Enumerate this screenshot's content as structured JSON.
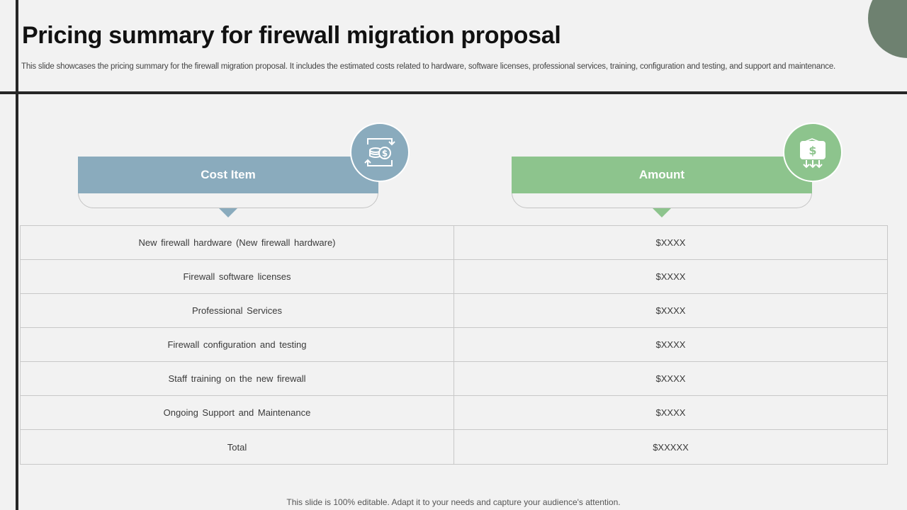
{
  "slide": {
    "title": "Pricing summary for firewall migration proposal",
    "subtitle": "This slide showcases the pricing summary for the firewall migration proposal. It includes the estimated costs related to hardware, software licenses, professional services, training, configuration and testing, and support and maintenance.",
    "footer": "This slide is 100% editable. Adapt it to your needs and capture your audience's attention."
  },
  "columns": {
    "cost_item": {
      "label": "Cost Item",
      "icon": "money-exchange-icon",
      "color": "#8aabbd"
    },
    "amount": {
      "label": "Amount",
      "icon": "wallet-dollar-icon",
      "color": "#8dc48d"
    }
  },
  "rows": [
    {
      "item": "New firewall hardware (New firewall hardware)",
      "amount": "$XXXX"
    },
    {
      "item": "Firewall software licenses",
      "amount": "$XXXX"
    },
    {
      "item": "Professional Services",
      "amount": "$XXXX"
    },
    {
      "item": "Firewall configuration and testing",
      "amount": "$XXXX"
    },
    {
      "item": "Staff training on the new firewall",
      "amount": "$XXXX"
    },
    {
      "item": "Ongoing Support and Maintenance",
      "amount": "$XXXX"
    },
    {
      "item": "Total",
      "amount": "$XXXXX"
    }
  ],
  "colors": {
    "accent_dark": "#262626",
    "corner_circle": "#6e8170"
  }
}
